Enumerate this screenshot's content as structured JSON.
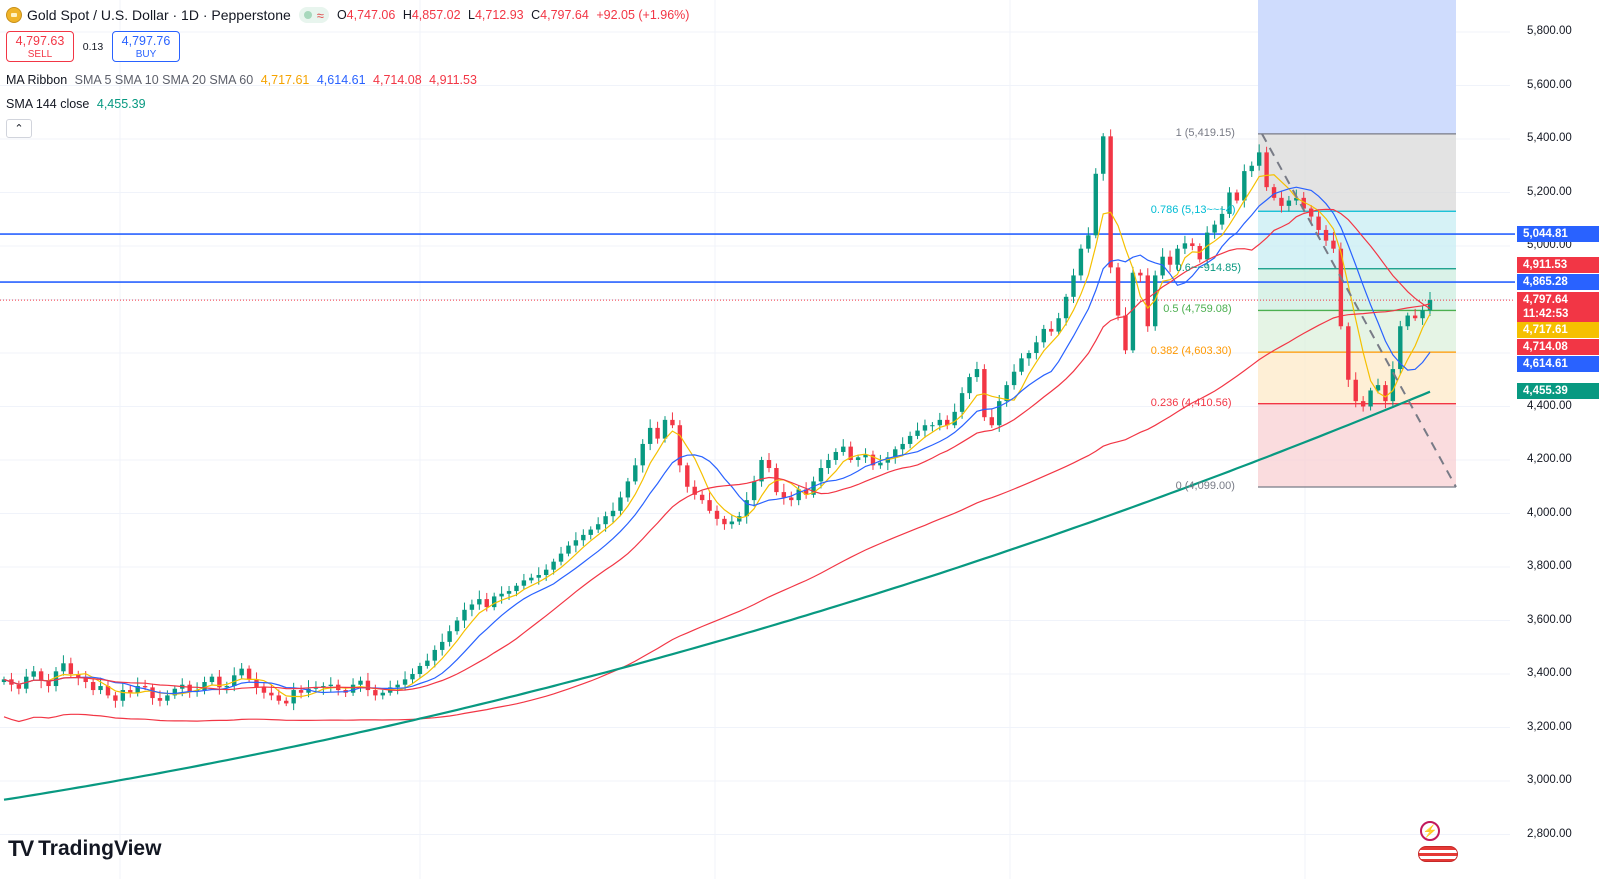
{
  "header": {
    "symbol_title": "Gold Spot / U.S. Dollar · 1D · Pepperstone",
    "ohlc": {
      "open_key": "O",
      "open": "4,747.06",
      "high_key": "H",
      "high": "4,857.02",
      "low_key": "L",
      "low": "4,712.93",
      "close_key": "C",
      "close": "4,797.64",
      "change": "+92.05 (+1.96%)"
    },
    "status_icon": "≈"
  },
  "trade": {
    "sell_price": "4,797.63",
    "sell_label": "SELL",
    "spread": "0.13",
    "buy_price": "4,797.76",
    "buy_label": "BUY"
  },
  "indicators": {
    "ma_ribbon_label": "MA Ribbon",
    "ma_ribbon_params": "SMA 5 SMA 10 SMA 20 SMA 60",
    "ma_ribbon_values": [
      "4,717.61",
      "4,614.61",
      "4,714.08",
      "4,911.53"
    ],
    "sma144_label": "SMA 144 close",
    "sma144_value": "4,455.39",
    "collapse_icon": "chevron-up-icon",
    "collapse_glyph": "⌃"
  },
  "price_axis": [
    "5,800.00",
    "5,600.00",
    "5,400.00",
    "5,200.00",
    "5,000.00",
    "4,400.00",
    "4,200.00",
    "4,000.00",
    "3,800.00",
    "3,600.00",
    "3,400.00",
    "3,200.00",
    "3,000.00",
    "2,800.00"
  ],
  "price_tags": [
    {
      "text": "5,044.81",
      "color": "#2962ff"
    },
    {
      "text": "4,911.53",
      "color": "#f23645"
    },
    {
      "text": "4,865.28",
      "color": "#2962ff"
    },
    {
      "text": "4,797.64",
      "color": "#f23645"
    },
    {
      "text": "11:42:53",
      "color": "#f23645"
    },
    {
      "text": "4,717.61",
      "color": "#f5c000"
    },
    {
      "text": "4,714.08",
      "color": "#f23645"
    },
    {
      "text": "4,614.61",
      "color": "#2962ff"
    },
    {
      "text": "4,455.39",
      "color": "#089981"
    }
  ],
  "fib_levels": [
    {
      "label": "1 (5,419.15)",
      "price": 5419.15,
      "color": "#787b86",
      "fill": "#d9d9d9"
    },
    {
      "label": "0.786 (5,13~~~4)",
      "price": 5130.0,
      "color": "#00bcd4",
      "fill": "#c8eef3"
    },
    {
      "label": "0.6~~914.85)",
      "price": 4914.85,
      "color": "#089981",
      "fill": "#cdeee0"
    },
    {
      "label": "0.5 (4,759.08)",
      "price": 4759.08,
      "color": "#4caf50",
      "fill": "#dcf0dc"
    },
    {
      "label": "0.382 (4,603.30)",
      "price": 4603.3,
      "color": "#ff9800",
      "fill": "#fde9c8"
    },
    {
      "label": "0.236 (4,410.56)",
      "price": 4410.56,
      "color": "#f23645",
      "fill": "#f8d0d3"
    },
    {
      "label": "0 (4,099.00)",
      "price": 4099.0,
      "color": "#787b86",
      "fill": null
    }
  ],
  "horizontal_lines": [
    5044.81,
    4865.28
  ],
  "last_price": 4797.64,
  "colors": {
    "up": "#089981",
    "down": "#f23645",
    "sma5": "#f5c000",
    "sma10": "#2962ff",
    "sma20": "#f23645",
    "sma60": "#f23645",
    "sma144": "#089981",
    "grid": "#f0f3fa"
  },
  "chart_data": {
    "type": "candlestick",
    "title": "Gold Spot / U.S. Dollar · 1D · Pepperstone",
    "ylim": [
      2750,
      5900
    ],
    "candle_closes": [
      3380,
      3360,
      3345,
      3390,
      3410,
      3375,
      3355,
      3410,
      3440,
      3400,
      3385,
      3370,
      3340,
      3355,
      3320,
      3300,
      3340,
      3330,
      3355,
      3350,
      3310,
      3300,
      3320,
      3345,
      3360,
      3335,
      3340,
      3370,
      3390,
      3350,
      3355,
      3395,
      3420,
      3380,
      3350,
      3330,
      3320,
      3300,
      3290,
      3340,
      3330,
      3345,
      3350,
      3355,
      3360,
      3340,
      3330,
      3360,
      3375,
      3340,
      3320,
      3330,
      3350,
      3360,
      3380,
      3400,
      3430,
      3450,
      3490,
      3520,
      3560,
      3600,
      3640,
      3660,
      3680,
      3650,
      3690,
      3700,
      3710,
      3730,
      3750,
      3760,
      3770,
      3790,
      3820,
      3850,
      3880,
      3900,
      3920,
      3940,
      3960,
      3990,
      4010,
      4060,
      4120,
      4180,
      4260,
      4320,
      4280,
      4350,
      4330,
      4180,
      4100,
      4070,
      4050,
      4010,
      3980,
      3960,
      3970,
      3990,
      4050,
      4120,
      4200,
      4170,
      4080,
      4060,
      4050,
      4090,
      4070,
      4120,
      4170,
      4200,
      4230,
      4250,
      4200,
      4210,
      4220,
      4180,
      4190,
      4210,
      4240,
      4260,
      4290,
      4310,
      4330,
      4330,
      4350,
      4330,
      4380,
      4450,
      4510,
      4540,
      4360,
      4330,
      4420,
      4480,
      4530,
      4580,
      4600,
      4640,
      4690,
      4680,
      4730,
      4810,
      4890,
      4990,
      5040,
      5270,
      5410,
      4920,
      4740,
      4610,
      4900,
      4890,
      4700,
      4890,
      4960,
      4930,
      4990,
      5010,
      5000,
      4950,
      5050,
      5080,
      5120,
      5200,
      5170,
      5280,
      5300,
      5350,
      5220,
      5180,
      5150,
      5170,
      5180,
      5140,
      5110,
      5060,
      5020,
      4990,
      4700,
      4500,
      4420,
      4400,
      4460,
      4480,
      4420,
      4540,
      4700,
      4740,
      4730,
      4760,
      4798
    ],
    "sma144": {
      "start": 2930,
      "end": 4455.39
    },
    "annotations": [
      "1 (5,419.15)",
      "0.786",
      "0.5 (4,759.08)",
      "0.382 (4,603.30)",
      "0.236 (4,410.56)",
      "0 (4,099.00)"
    ]
  },
  "branding": {
    "logo_mark": "TV",
    "logo_text": "TradingView"
  }
}
